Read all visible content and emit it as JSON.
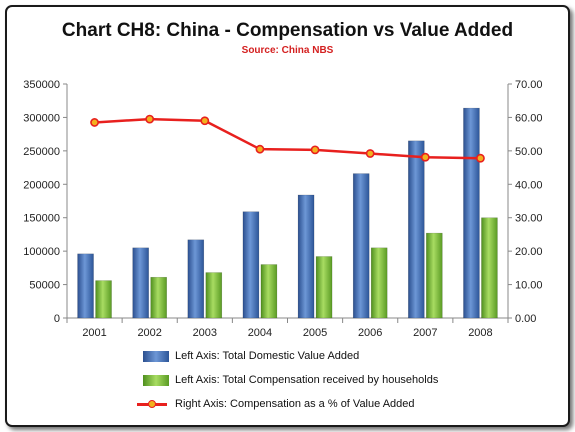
{
  "chart_data": {
    "type": "bar",
    "title": "Chart CH8: China - Compensation vs Value Added",
    "subtitle": "Source: China NBS",
    "categories": [
      "2001",
      "2002",
      "2003",
      "2004",
      "2005",
      "2006",
      "2007",
      "2008"
    ],
    "series": [
      {
        "name": "Left Axis: Total Domestic Value Added",
        "type": "bar",
        "axis": "left",
        "color": "#3d6bb8",
        "values": [
          96000,
          105000,
          117000,
          159000,
          184000,
          216000,
          265000,
          314000
        ]
      },
      {
        "name": "Left Axis: Total Compensation received by households",
        "type": "bar",
        "axis": "left",
        "color": "#7cc13a",
        "values": [
          56000,
          61000,
          68000,
          80000,
          92000,
          105000,
          127000,
          150000
        ]
      },
      {
        "name": "Right Axis: Compensation as a % of Value Added",
        "type": "line",
        "axis": "right",
        "color": "#e8201e",
        "values": [
          58.5,
          59.5,
          59.0,
          50.5,
          50.3,
          49.2,
          48.1,
          47.8
        ]
      }
    ],
    "left_axis": {
      "ylim": [
        0,
        350000
      ],
      "ticks": [
        "350000",
        "300000",
        "250000",
        "200000",
        "150000",
        "100000",
        "50000",
        "0"
      ]
    },
    "right_axis": {
      "ylim": [
        0,
        70
      ],
      "ticks": [
        "70.00",
        "60.00",
        "50.00",
        "40.00",
        "30.00",
        "20.00",
        "10.00",
        "0.00"
      ]
    },
    "legend_position": "bottom",
    "grid": false
  }
}
